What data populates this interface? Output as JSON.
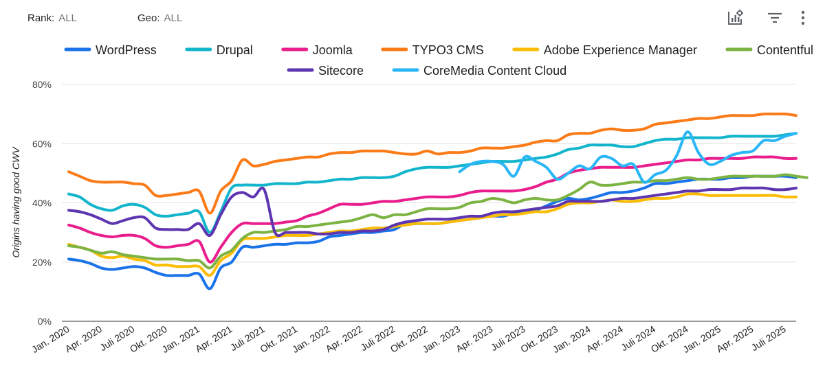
{
  "filters": {
    "rank_label": "Rank:",
    "rank_value": "ALL",
    "geo_label": "Geo:",
    "geo_value": "ALL"
  },
  "toolbar": {
    "icons": [
      "chart-settings-icon",
      "filter-icon",
      "more-vert-icon"
    ]
  },
  "chart_data": {
    "type": "line",
    "ylabel": "Origins having good CWV",
    "ylim": [
      0,
      80
    ],
    "yticks": [
      "0%",
      "20%",
      "40%",
      "60%",
      "80%"
    ],
    "xlim": [
      0,
      67
    ],
    "xticks": [
      {
        "label": "Jan. 2020",
        "i": 0
      },
      {
        "label": "Apr. 2020",
        "i": 3
      },
      {
        "label": "Juli 2020",
        "i": 6
      },
      {
        "label": "Okt. 2020",
        "i": 9
      },
      {
        "label": "Jan. 2021",
        "i": 12
      },
      {
        "label": "Apr. 2021",
        "i": 15
      },
      {
        "label": "Juli 2021",
        "i": 18
      },
      {
        "label": "Okt. 2021",
        "i": 21
      },
      {
        "label": "Jan. 2022",
        "i": 24
      },
      {
        "label": "Apr. 2022",
        "i": 27
      },
      {
        "label": "Juli 2022",
        "i": 30
      },
      {
        "label": "Okt. 2022",
        "i": 33
      },
      {
        "label": "Jan. 2023",
        "i": 36
      },
      {
        "label": "Apr. 2023",
        "i": 39
      },
      {
        "label": "Juli 2023",
        "i": 42
      },
      {
        "label": "Okt. 2023",
        "i": 45
      },
      {
        "label": "Jan. 2024",
        "i": 48
      },
      {
        "label": "Apr. 2024",
        "i": 51
      },
      {
        "label": "Juli 2024",
        "i": 54
      },
      {
        "label": "Okt. 2024",
        "i": 57
      },
      {
        "label": "Jan. 2025",
        "i": 60
      },
      {
        "label": "Apr. 2025",
        "i": 63
      },
      {
        "label": "Juli 2025",
        "i": 66
      }
    ],
    "grid": true,
    "legend": "top",
    "series": [
      {
        "name": "WordPress",
        "color": "#1a73e8",
        "start": 0,
        "values": [
          21,
          20.5,
          19.5,
          18,
          17.5,
          18,
          18.5,
          18,
          16.5,
          15.5,
          15.5,
          15.5,
          16,
          11,
          18,
          20,
          25,
          25,
          25.5,
          26,
          26,
          26.5,
          26.5,
          27,
          28.5,
          29,
          29.5,
          30,
          30,
          30.5,
          31,
          33,
          33,
          33,
          33,
          33.5,
          34,
          34.5,
          35,
          35.5,
          35.5,
          36.5,
          37,
          37.5,
          39,
          40.5,
          41.5,
          41,
          41.5,
          42.5,
          43.5,
          43.5,
          44,
          45,
          46.5,
          46.5,
          47,
          47.5,
          48,
          48,
          48,
          48.5,
          48.5,
          49,
          49,
          49,
          49,
          48.5
        ]
      },
      {
        "name": "Drupal",
        "color": "#12b5cb",
        "start": 0,
        "values": [
          43,
          42,
          39.5,
          38,
          37.5,
          39,
          39.5,
          38.5,
          36,
          35.5,
          36,
          36.5,
          37,
          30,
          37,
          45,
          46,
          46,
          46,
          46.5,
          46.5,
          46.5,
          47,
          47,
          47.5,
          48,
          48,
          48.5,
          48.5,
          48.5,
          49,
          50.5,
          51.5,
          52,
          52,
          52,
          52.5,
          53,
          53.5,
          54,
          54,
          54,
          54.5,
          55,
          55.5,
          56.5,
          58,
          58.5,
          59.5,
          59.5,
          59.5,
          59,
          59,
          60,
          61,
          61.5,
          61.5,
          62,
          62,
          62,
          62,
          62.5,
          62.5,
          62.5,
          62.5,
          62.5,
          63,
          63.5
        ]
      },
      {
        "name": "Joomla",
        "color": "#e91e8c",
        "start": 0,
        "values": [
          32.5,
          31.5,
          30,
          29,
          28.5,
          29,
          29,
          28,
          25.5,
          25,
          25.5,
          26,
          27,
          20,
          25,
          30,
          33,
          33,
          33,
          33,
          33.5,
          34,
          35.5,
          36.5,
          38,
          39.5,
          39.5,
          39.5,
          40,
          40.5,
          40.5,
          41,
          41.5,
          42,
          42,
          42,
          42.5,
          43.5,
          44,
          44,
          44,
          44,
          44.5,
          45.5,
          47,
          48,
          50,
          51,
          51.5,
          52,
          52,
          52,
          52,
          52.5,
          53,
          53.5,
          54,
          54.5,
          54.5,
          55,
          55,
          55,
          55,
          55.5,
          55.5,
          55.5,
          55,
          55
        ]
      },
      {
        "name": "TYPO3 CMS",
        "color": "#fa7b17",
        "start": 0,
        "values": [
          50.5,
          49,
          47.5,
          47,
          47,
          47,
          46.5,
          46,
          42.5,
          42.5,
          43,
          43.5,
          44,
          36.5,
          44,
          47.5,
          54.5,
          52.5,
          53,
          54,
          54.5,
          55,
          55.5,
          55.5,
          56.5,
          57,
          57,
          57.5,
          57.5,
          57.5,
          57,
          56.5,
          56.5,
          57.5,
          56.5,
          57,
          57,
          57.5,
          58.5,
          58.5,
          58.5,
          59,
          59.5,
          60.5,
          61,
          61,
          63,
          63.5,
          63.5,
          64.5,
          65,
          64.5,
          64.5,
          65,
          66.5,
          67,
          67.5,
          68,
          68.5,
          68.5,
          69,
          69.5,
          69.5,
          69.5,
          70,
          70,
          70,
          69.5
        ]
      },
      {
        "name": "Adobe Experience Manager",
        "color": "#fbbc04",
        "start": 0,
        "values": [
          26,
          25,
          24,
          22,
          21.5,
          22,
          21,
          20.5,
          19,
          19,
          18.5,
          18.5,
          18.5,
          15.5,
          20.5,
          23,
          27.5,
          28,
          28,
          28.5,
          29,
          29,
          29,
          29.5,
          30,
          30.5,
          30.5,
          31,
          31.5,
          31.5,
          32,
          32.5,
          33,
          33,
          33,
          33.5,
          34,
          34.5,
          35,
          35.5,
          36,
          36,
          36.5,
          37,
          37,
          38,
          39.5,
          40,
          40,
          40.5,
          41,
          40.5,
          40.5,
          41,
          41.5,
          41.5,
          42,
          43,
          43,
          42.5,
          42.5,
          42.5,
          42.5,
          42.5,
          42.5,
          42.5,
          42,
          42
        ]
      },
      {
        "name": "Contentful",
        "color": "#7cb342",
        "start": 0,
        "values": [
          25.5,
          25,
          24,
          23,
          23.5,
          22.5,
          22,
          21.5,
          21,
          21,
          21,
          20.5,
          20.5,
          18,
          22,
          24,
          28,
          30,
          30,
          30.5,
          31,
          32,
          32,
          32.5,
          33,
          33.5,
          34,
          35,
          36,
          35,
          36,
          36,
          37,
          38,
          38,
          38,
          38.5,
          40,
          40.5,
          41.5,
          41,
          40,
          41,
          41.5,
          41,
          41,
          42.5,
          44.5,
          47,
          46,
          46,
          46.5,
          47,
          47,
          47.5,
          47.5,
          48,
          48.5,
          48,
          48,
          48.5,
          49,
          49,
          49,
          49,
          49,
          49.5,
          49,
          48.5
        ]
      },
      {
        "name": "Sitecore",
        "color": "#5e35b1",
        "start": 0,
        "values": [
          37.5,
          37,
          36,
          34.5,
          33,
          34,
          35,
          35,
          31.5,
          31,
          31,
          31,
          33,
          29,
          36,
          42,
          43.5,
          42,
          44.5,
          30,
          30,
          30,
          30,
          29.5,
          29.5,
          30,
          30,
          30.5,
          30.5,
          31,
          32.5,
          33.5,
          34,
          34.5,
          34.5,
          34.5,
          35,
          35.5,
          35.5,
          36.5,
          37,
          37,
          37.5,
          38,
          38.5,
          39,
          40.5,
          40.5,
          40.5,
          40.5,
          41,
          41.5,
          41.5,
          42,
          42.5,
          43,
          43.5,
          44,
          44,
          44.5,
          44.5,
          44.5,
          45,
          45,
          45,
          44.5,
          44.5,
          45
        ]
      },
      {
        "name": "CoreMedia Content Cloud",
        "color": "#29b6f6",
        "start": 36,
        "values": [
          50.5,
          53,
          54,
          54,
          53,
          49,
          55.5,
          54,
          52,
          48,
          50,
          52.5,
          51.5,
          55.5,
          55,
          52.5,
          53,
          47,
          49.5,
          51,
          56,
          64,
          57,
          53,
          54,
          56,
          57,
          57.5,
          61,
          61,
          62.5,
          63.5
        ]
      }
    ]
  }
}
